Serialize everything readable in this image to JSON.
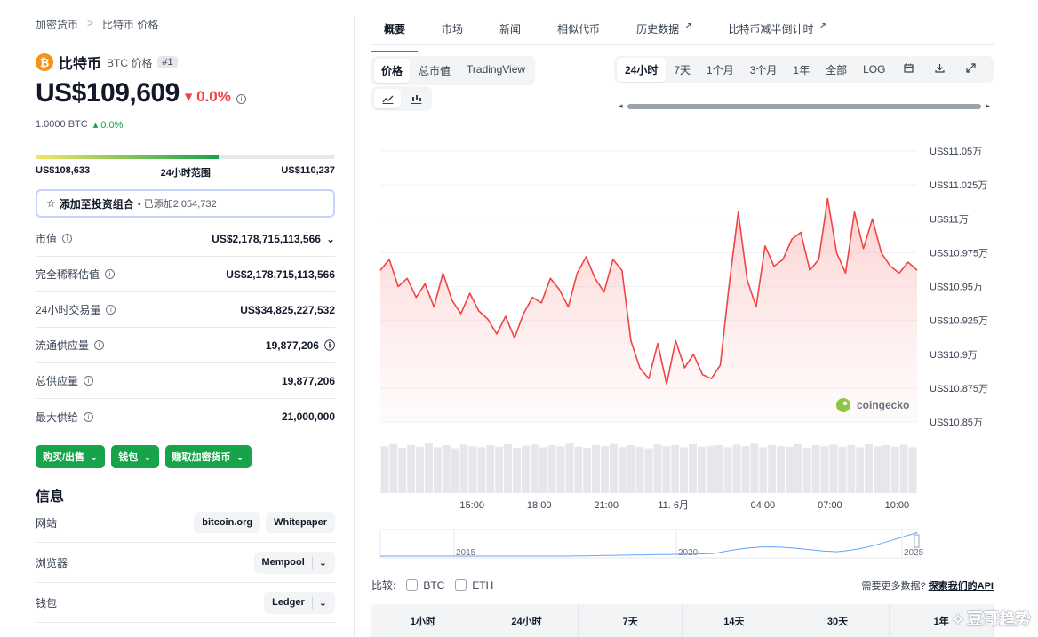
{
  "breadcrumb": {
    "root": "加密货币",
    "sep": ">",
    "current": "比特币 价格"
  },
  "coin": {
    "logo": "₿",
    "name": "比特币",
    "symbol_label": "BTC 价格",
    "rank": "#1"
  },
  "price": {
    "value": "US$109,609",
    "change": "▾ 0.0%",
    "change_color": "#ef4444",
    "btc_value": "1.0000 BTC",
    "btc_change": "▴ 0.0%"
  },
  "range": {
    "low": "US$108,633",
    "label": "24小时范围",
    "high": "US$110,237",
    "fill_fraction": 0.61
  },
  "portfolio": {
    "label": "添加至投资组合",
    "added": "• 已添加2,054,732"
  },
  "stats": [
    {
      "label": "市值",
      "value": "US$2,178,715,113,566",
      "suffix": "⌄"
    },
    {
      "label": "完全稀释估值",
      "value": "US$2,178,715,113,566",
      "suffix": ""
    },
    {
      "label": "24小时交易量",
      "value": "US$34,825,227,532",
      "suffix": ""
    },
    {
      "label": "流通供应量",
      "value": "19,877,206",
      "suffix": "ⓘ"
    },
    {
      "label": "总供应量",
      "value": "19,877,206",
      "suffix": ""
    },
    {
      "label": "最大供给",
      "value": "21,000,000",
      "suffix": ""
    }
  ],
  "actions": {
    "buy_sell": "购买/出售",
    "wallet": "钱包",
    "earn": "赚取加密货币"
  },
  "info": {
    "title": "信息",
    "website_label": "网站",
    "website_links": [
      "bitcoin.org",
      "Whitepaper"
    ],
    "explorer_label": "浏览器",
    "explorer_value": "Mempool",
    "wallet_label": "钱包",
    "wallet_value": "Ledger"
  },
  "tabs": [
    "概要",
    "市场",
    "新闻",
    "相似代币",
    "历史数据",
    "比特币减半倒计时"
  ],
  "chart_type_toggle": [
    "价格",
    "总市值",
    "TradingView"
  ],
  "time_ranges": [
    "24小时",
    "7天",
    "1个月",
    "3个月",
    "1年",
    "全部",
    "LOG"
  ],
  "toolbar_icons": [
    "calendar-icon",
    "download-icon",
    "expand-icon"
  ],
  "brand": "coingecko",
  "compare": {
    "label": "比较:",
    "options": [
      "BTC",
      "ETH"
    ],
    "note": "需要更多数据?",
    "link": "探索我们的API"
  },
  "periods": [
    "1小时",
    "24小时",
    "7天",
    "14天",
    "30天",
    "1年"
  ],
  "watermark": "豆哥趋势",
  "chart_data": {
    "type": "line",
    "color": "#ef4444",
    "y_tick_labels": [
      "US$11.05万",
      "US$11.025万",
      "US$11万",
      "US$10.975万",
      "US$10.95万",
      "US$10.925万",
      "US$10.9万",
      "US$10.875万",
      "US$10.85万"
    ],
    "y_ticks": [
      110500,
      110250,
      110000,
      109750,
      109500,
      109250,
      109000,
      108750,
      108500
    ],
    "ylim": [
      108500,
      110500
    ],
    "x_tick_labels": [
      "15:00",
      "18:00",
      "21:00",
      "11. 6月",
      "04:00",
      "07:00",
      "10:00"
    ],
    "x_tick_hours": [
      15,
      18,
      21,
      24,
      28,
      31,
      34
    ],
    "x_range_hours": [
      10.9,
      34.9
    ],
    "x": [
      10.9,
      11.3,
      11.7,
      12.1,
      12.5,
      12.9,
      13.3,
      13.7,
      14.1,
      14.5,
      14.9,
      15.3,
      15.7,
      16.1,
      16.5,
      16.9,
      17.3,
      17.7,
      18.1,
      18.5,
      18.9,
      19.3,
      19.7,
      20.1,
      20.5,
      20.9,
      21.3,
      21.7,
      22.1,
      22.5,
      22.9,
      23.3,
      23.7,
      24.1,
      24.5,
      24.9,
      25.3,
      25.7,
      26.1,
      26.5,
      26.9,
      27.3,
      27.7,
      28.1,
      28.5,
      28.9,
      29.3,
      29.7,
      30.1,
      30.5,
      30.9,
      31.3,
      31.7,
      32.1,
      32.5,
      32.9,
      33.3,
      33.7,
      34.1,
      34.5,
      34.9
    ],
    "y": [
      109620,
      109700,
      109500,
      109560,
      109420,
      109520,
      109350,
      109600,
      109400,
      109300,
      109450,
      109320,
      109260,
      109150,
      109280,
      109120,
      109300,
      109420,
      109380,
      109560,
      109480,
      109350,
      109600,
      109720,
      109560,
      109460,
      109700,
      109620,
      109100,
      108900,
      108820,
      109080,
      108780,
      109100,
      108900,
      109000,
      108850,
      108820,
      108920,
      109520,
      110050,
      109550,
      109350,
      109800,
      109650,
      109700,
      109850,
      109900,
      109620,
      109700,
      110150,
      109750,
      109600,
      110050,
      109780,
      110000,
      109750,
      109650,
      109600,
      109680,
      109620
    ],
    "volume": [
      0.88,
      0.92,
      0.85,
      0.9,
      0.87,
      0.93,
      0.86,
      0.9,
      0.84,
      0.91,
      0.88,
      0.86,
      0.9,
      0.87,
      0.92,
      0.85,
      0.89,
      0.91,
      0.86,
      0.9,
      0.88,
      0.93,
      0.87,
      0.85,
      0.9,
      0.88,
      0.92,
      0.86,
      0.9,
      0.87,
      0.84,
      0.91,
      0.88,
      0.9,
      0.86,
      0.92,
      0.87,
      0.89,
      0.9,
      0.86,
      0.91,
      0.88,
      0.93,
      0.86,
      0.9,
      0.88,
      0.87,
      0.92,
      0.85,
      0.9,
      0.88,
      0.91,
      0.87,
      0.9,
      0.86,
      0.92,
      0.88,
      0.9,
      0.87,
      0.91,
      0.86
    ],
    "navigator_labels": [
      "2015",
      "2020",
      "2025"
    ]
  }
}
